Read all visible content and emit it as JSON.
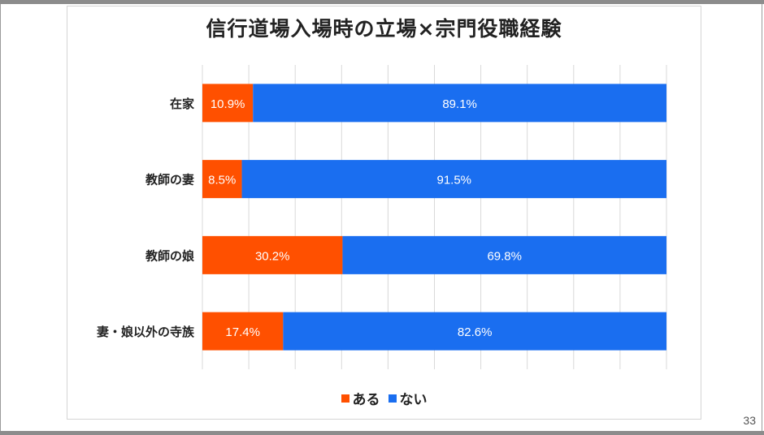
{
  "page_number": "33",
  "chart_data": {
    "type": "bar",
    "orientation": "horizontal",
    "stacked": "100%",
    "title": "信行道場入場時の立場×宗門役職経験",
    "categories": [
      "在家",
      "教師の妻",
      "教師の娘",
      "妻・娘以外の寺族"
    ],
    "series": [
      {
        "name": "ある",
        "color": "#ff5000",
        "values": [
          10.9,
          8.5,
          30.2,
          17.4
        ],
        "labels": [
          "10.9%",
          "8.5%",
          "30.2%",
          "17.4%"
        ]
      },
      {
        "name": "ない",
        "color": "#1a6ef0",
        "values": [
          89.1,
          91.5,
          69.8,
          82.6
        ],
        "labels": [
          "89.1%",
          "91.5%",
          "69.8%",
          "82.6%"
        ]
      }
    ],
    "xlim": [
      0,
      100
    ],
    "grid": true,
    "legend_position": "bottom"
  }
}
